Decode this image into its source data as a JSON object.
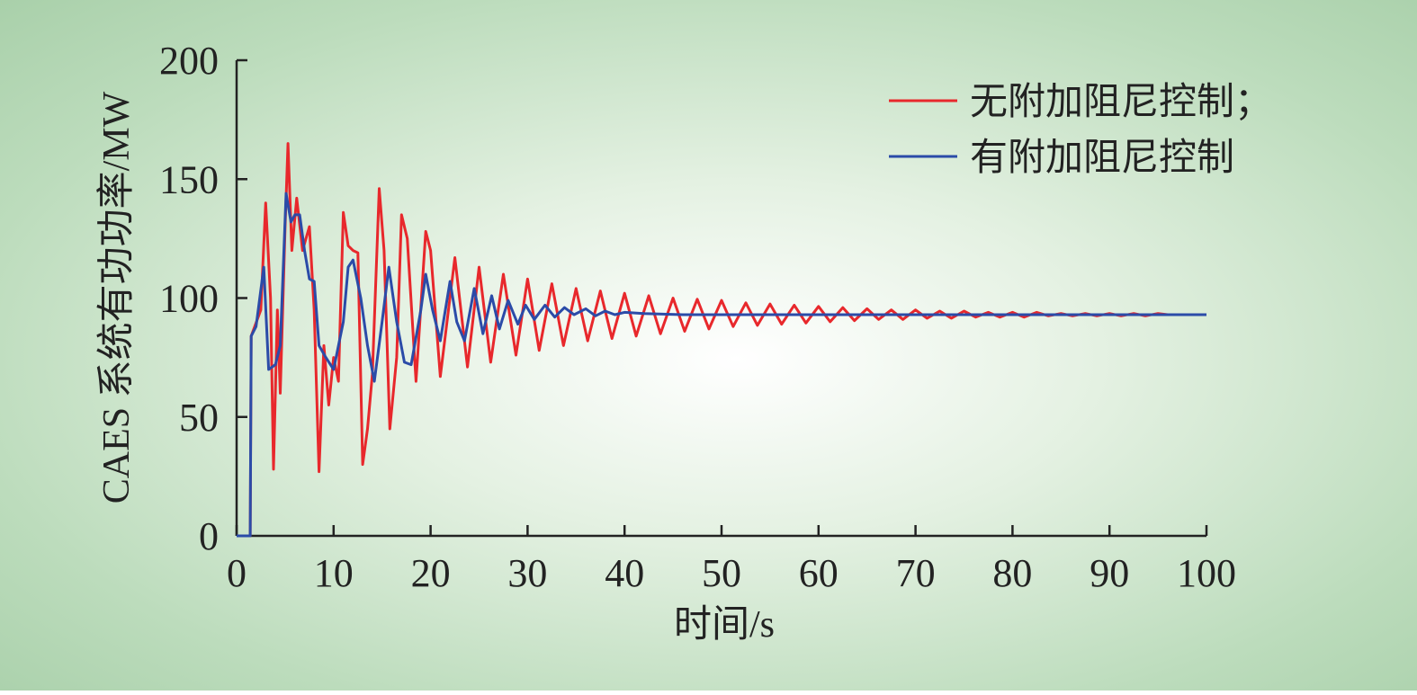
{
  "chart_data": {
    "type": "line",
    "x_label": "时间/s",
    "y_label": "CAES 系统有功功率/MW",
    "xlim": [
      0,
      100
    ],
    "xticks": [
      0,
      10,
      20,
      30,
      40,
      50,
      60,
      70,
      80,
      90,
      100
    ],
    "ylim": [
      0,
      200
    ],
    "yticks": [
      0,
      50,
      100,
      150,
      200
    ],
    "legend": "top-right",
    "series": [
      {
        "name": "无附加阻尼控制；",
        "color": "#e8282c",
        "x": [
          0,
          1.4,
          1.5,
          2.5,
          3,
          3.5,
          3.8,
          4.2,
          4.5,
          5,
          5.3,
          5.7,
          6.2,
          6.8,
          7.5,
          8,
          8.5,
          9,
          9.5,
          10,
          10.5,
          11,
          11.5,
          12,
          12.5,
          13,
          13.5,
          14,
          14.7,
          15.2,
          15.8,
          16.5,
          17,
          17.6,
          18.5,
          19.5,
          20,
          21,
          22.5,
          23.8,
          25,
          26.2,
          27.5,
          28.8,
          30,
          31.2,
          32.5,
          33.7,
          35,
          36.2,
          37.5,
          38.7,
          40,
          41.2,
          42.5,
          43.7,
          45,
          46.2,
          47.5,
          48.7,
          50,
          51.2,
          52.5,
          53.7,
          55,
          56.2,
          57.5,
          58.7,
          60,
          61.2,
          62.5,
          63.7,
          65,
          66.2,
          67.5,
          68.7,
          70,
          71.2,
          72.5,
          73.7,
          75,
          76.2,
          77.5,
          78.7,
          80,
          81.2,
          82.5,
          83.7,
          85,
          86.2,
          87.5,
          88.7,
          90,
          91.2,
          92.5,
          93.7,
          95,
          96
        ],
        "values": [
          0,
          0,
          84,
          95,
          140,
          100,
          28,
          95,
          60,
          130,
          165,
          120,
          142,
          120,
          130,
          95,
          27,
          80,
          55,
          75,
          65,
          136,
          122,
          120,
          119,
          30,
          45,
          68,
          146,
          120,
          45,
          75,
          135,
          125,
          65,
          128,
          120,
          67,
          117,
          71,
          113,
          73,
          110,
          76,
          108,
          78,
          106,
          80,
          104,
          82,
          103,
          83,
          102,
          84,
          101,
          85,
          100,
          86,
          99.5,
          87,
          99,
          88,
          98,
          88.5,
          97.5,
          89,
          97,
          89.5,
          96.5,
          90,
          96,
          90.5,
          95.5,
          91,
          95,
          91,
          95,
          91.5,
          94.5,
          91.5,
          94.5,
          92,
          94,
          92,
          94,
          92,
          94,
          92.5,
          93.5,
          92.5,
          93.5,
          92.5,
          93.5,
          92.5,
          93.5,
          92.5,
          93.5,
          93
        ]
      },
      {
        "name": "有附加阻尼控制",
        "color": "#2b4ba8",
        "x": [
          0,
          1.4,
          1.5,
          2,
          2.8,
          3.3,
          4,
          4.5,
          5.1,
          5.6,
          6,
          6.5,
          7,
          7.5,
          8,
          8.5,
          9.2,
          10,
          11,
          11.5,
          12,
          12.8,
          13.5,
          14.2,
          15,
          15.7,
          16.5,
          17.3,
          18,
          19,
          19.5,
          20.2,
          21,
          22,
          22.7,
          23.5,
          24.5,
          25.4,
          26.3,
          27.1,
          28,
          29,
          29.8,
          30.7,
          31.8,
          32.8,
          33.8,
          34.8,
          36,
          37,
          38,
          39,
          40,
          42,
          46,
          100
        ],
        "values": [
          0,
          0,
          84,
          88,
          113,
          70,
          72,
          80,
          144,
          132,
          135,
          135,
          120,
          108,
          107,
          80,
          75,
          70,
          90,
          113,
          116,
          100,
          80,
          65,
          90,
          113,
          90,
          73,
          72,
          95,
          110,
          95,
          82,
          107,
          90,
          82,
          104,
          85,
          101,
          87,
          99,
          89,
          97,
          91,
          97,
          92,
          96,
          93,
          95.5,
          92.5,
          94.5,
          93,
          94,
          93.5,
          93,
          93
        ]
      }
    ]
  }
}
